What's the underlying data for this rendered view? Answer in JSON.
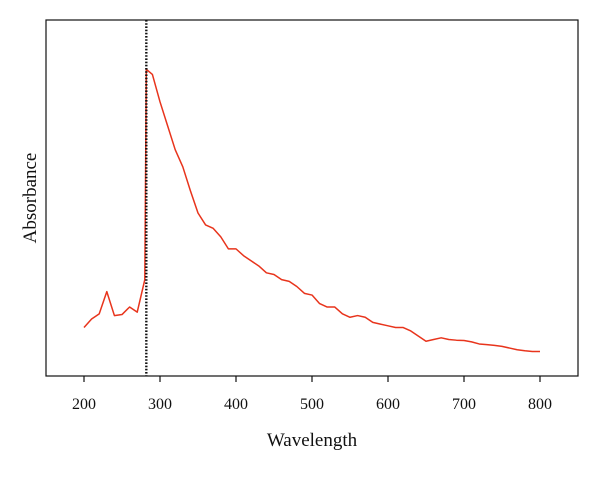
{
  "chart_data": {
    "type": "line",
    "title": "",
    "xlabel": "Wavelength",
    "ylabel": "Absorbance",
    "xlim": [
      150,
      850
    ],
    "ylim": [
      0,
      1
    ],
    "y_tick_labels_shown": false,
    "grid": false,
    "legend": "none",
    "x_ticks": [
      200,
      300,
      400,
      500,
      600,
      700,
      800
    ],
    "series": [
      {
        "color": "#e8341c",
        "x": [
          200,
          210,
          220,
          230,
          240,
          250,
          260,
          270,
          280,
          282,
          290,
          300,
          310,
          320,
          330,
          340,
          350,
          360,
          370,
          380,
          390,
          400,
          410,
          420,
          430,
          440,
          450,
          460,
          470,
          480,
          490,
          500,
          510,
          520,
          530,
          540,
          550,
          560,
          570,
          580,
          590,
          600,
          610,
          620,
          630,
          640,
          650,
          660,
          670,
          680,
          690,
          700,
          710,
          720,
          730,
          740,
          750,
          760,
          770,
          780,
          790,
          800
        ],
        "y": [
          0.13,
          0.155,
          0.17,
          0.235,
          0.165,
          0.168,
          0.19,
          0.175,
          0.27,
          0.885,
          0.87,
          0.79,
          0.72,
          0.65,
          0.6,
          0.53,
          0.465,
          0.43,
          0.42,
          0.395,
          0.36,
          0.36,
          0.34,
          0.325,
          0.31,
          0.29,
          0.285,
          0.27,
          0.265,
          0.25,
          0.23,
          0.225,
          0.2,
          0.19,
          0.19,
          0.17,
          0.16,
          0.165,
          0.16,
          0.145,
          0.14,
          0.135,
          0.13,
          0.13,
          0.12,
          0.105,
          0.09,
          0.095,
          0.1,
          0.095,
          0.093,
          0.092,
          0.088,
          0.082,
          0.08,
          0.078,
          0.075,
          0.07,
          0.065,
          0.062,
          0.06,
          0.06
        ]
      }
    ],
    "reference_line": {
      "x": 282,
      "style": "dotted",
      "color": "#111111"
    }
  }
}
